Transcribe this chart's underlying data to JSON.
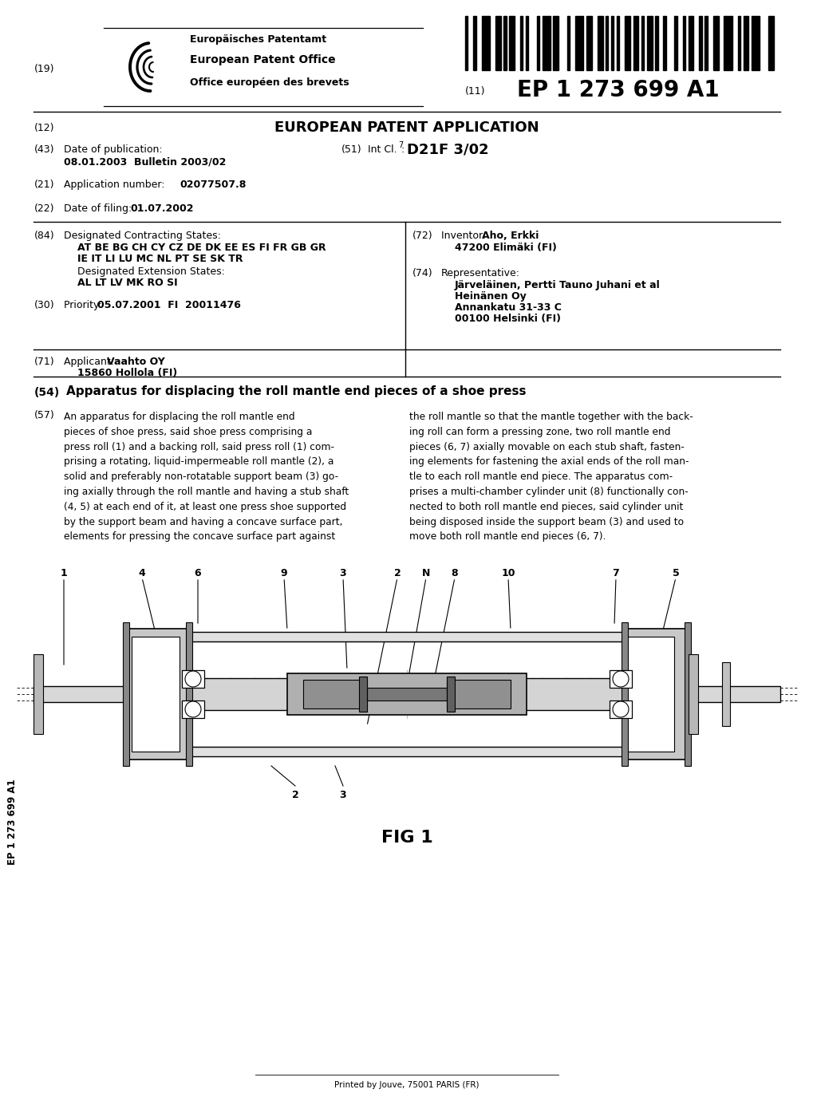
{
  "title": "EP 1 273 699 A1",
  "epo_line1": "Europäisches Patentamt",
  "epo_line2": "European Patent Office",
  "epo_line3": "Office européen des brevets",
  "app_type": "EUROPEAN PATENT APPLICATION",
  "pub_date": "08.01.2003  Bulletin 2003/02",
  "appnum_val": "02077507.8",
  "filing_val": "01.07.2002",
  "priority_val": "05.07.2001  FI  20011476",
  "applicant_val": "Vaahto OY",
  "applicant_addr": "15860 Hollola (FI)",
  "inventor_val": "Aho, Erkki",
  "inventor_addr": "47200 Elimäki (FI)",
  "rep_val": "Järveläinen, Pertti Tauno Juhani et al",
  "rep_firm": "Heinänen Oy",
  "rep_addr1": "Annankatu 31-33 C",
  "rep_addr2": "00100 Helsinki (FI)",
  "invention_title": "Apparatus for displacing the roll mantle end pieces of a shoe press",
  "fig_caption": "FIG 1",
  "side_text": "EP 1 273 699 A1",
  "printer_text": "Printed by Jouve, 75001 PARIS (FR)",
  "bg_color": "#ffffff"
}
